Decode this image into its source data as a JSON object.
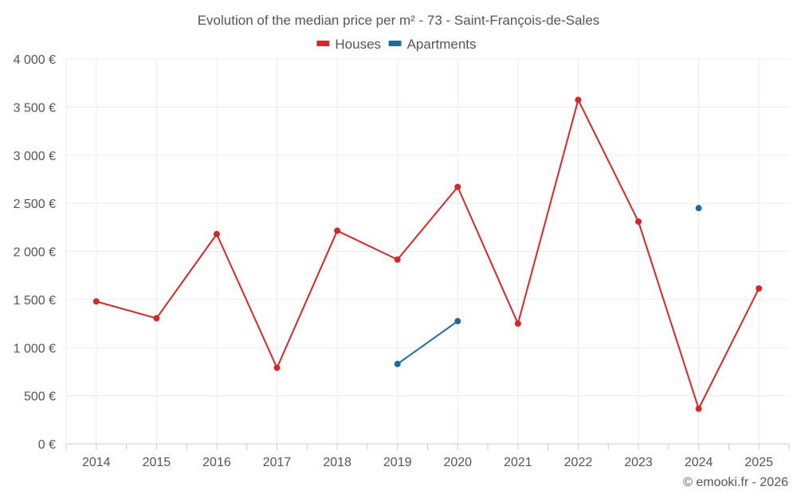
{
  "chart_data": {
    "type": "line",
    "title": "Evolution of the median price per m² - 73 - Saint-François-de-Sales",
    "categories": [
      "2014",
      "2015",
      "2016",
      "2017",
      "2018",
      "2019",
      "2020",
      "2021",
      "2022",
      "2023",
      "2024",
      "2025"
    ],
    "series": [
      {
        "name": "Houses",
        "color": "#d62728",
        "values": [
          1480,
          1305,
          2180,
          790,
          2215,
          1915,
          2670,
          1250,
          3575,
          2310,
          365,
          1615
        ]
      },
      {
        "name": "Apartments",
        "color": "#1f6b9c",
        "values": [
          null,
          null,
          null,
          null,
          null,
          830,
          1275,
          null,
          null,
          null,
          2450,
          null
        ]
      }
    ],
    "y_ticks": [
      {
        "value": 0,
        "label": "0 €"
      },
      {
        "value": 500,
        "label": "500 €"
      },
      {
        "value": 1000,
        "label": "1 000 €"
      },
      {
        "value": 1500,
        "label": "1 500 €"
      },
      {
        "value": 2000,
        "label": "2 000 €"
      },
      {
        "value": 2500,
        "label": "2 500 €"
      },
      {
        "value": 3000,
        "label": "3 000 €"
      },
      {
        "value": 3500,
        "label": "3 500 €"
      },
      {
        "value": 4000,
        "label": "4 000 €"
      }
    ],
    "ylim": [
      0,
      4000
    ],
    "grid": true,
    "legend_position": "top-center",
    "xlabel": "",
    "ylabel": ""
  },
  "credit": "© emooki.fr - 2026"
}
